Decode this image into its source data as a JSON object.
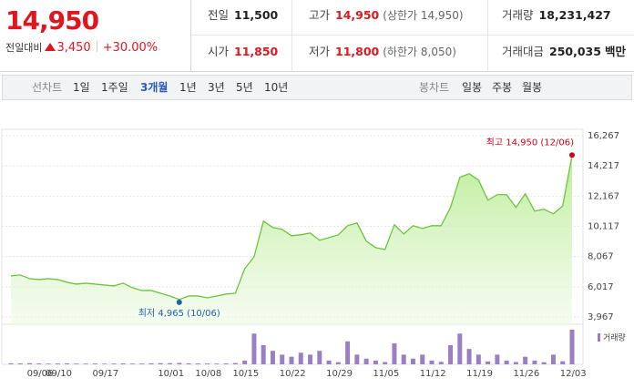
{
  "header": {
    "price": "14,950",
    "change_label": "전일대비",
    "change": "3,450",
    "change_rate": "+30.00%",
    "stats": [
      {
        "label": "전일",
        "value": "11,500"
      },
      {
        "label": "고가",
        "value": "14,950",
        "note": "(상한가 14,950)"
      },
      {
        "label": "거래량",
        "value": "18,231,427"
      },
      {
        "label": "시가",
        "value": "11,850"
      },
      {
        "label": "저가",
        "value": "11,800",
        "note": "(하한가 8,050)"
      },
      {
        "label": "거래대금",
        "value": "250,035",
        "unit": "백만"
      }
    ]
  },
  "toolbar": {
    "line_label": "선차트",
    "periods": [
      "1일",
      "1주일",
      "3개월",
      "1년",
      "3년",
      "5년",
      "10년"
    ],
    "selected_period": 2,
    "candle_label": "봉차트",
    "candle_periods": [
      "일봉",
      "주봉",
      "월봉"
    ]
  },
  "chart_data": {
    "type": "line",
    "categories": [
      "09/06",
      null,
      "09/10",
      null,
      null,
      null,
      null,
      "09/17",
      null,
      null,
      null,
      null,
      null,
      null,
      "10/01",
      null,
      null,
      null,
      "10/08",
      null,
      null,
      null,
      "10/15",
      null,
      null,
      null,
      null,
      "10/22",
      null,
      null,
      null,
      null,
      "10/29",
      null,
      null,
      null,
      null,
      "11/05",
      null,
      null,
      null,
      null,
      "11/12",
      null,
      null,
      null,
      null,
      "11/19",
      null,
      null,
      null,
      null,
      "11/26",
      null,
      null,
      null,
      null,
      "12/03",
      null,
      null,
      null
    ],
    "series": [
      {
        "color": "#6cc43c",
        "values": [
          6754,
          6816,
          6568,
          6506,
          6568,
          6506,
          6320,
          6196,
          6258,
          6196,
          6135,
          6073,
          6258,
          5949,
          5763,
          5763,
          5577,
          5391,
          5150,
          5391,
          5391,
          5267,
          5391,
          5515,
          5577,
          7249,
          8054,
          10470,
          10036,
          9912,
          9479,
          9541,
          9665,
          9169,
          9355,
          9541,
          10160,
          10346,
          9107,
          8674,
          8550,
          10222,
          9603,
          10160,
          9974,
          10160,
          10160,
          11399,
          13442,
          13690,
          13257,
          11894,
          12266,
          12266,
          11399,
          12328,
          11151,
          11275,
          10965,
          11500,
          14950
        ]
      }
    ],
    "volume": {
      "name": "거래량",
      "color": "#9a80c2",
      "values": [
        520000,
        480000,
        610000,
        450000,
        390000,
        420000,
        510000,
        380000,
        360000,
        430000,
        350000,
        400000,
        470000,
        390000,
        420000,
        530000,
        610000,
        580000,
        720000,
        490000,
        450000,
        410000,
        380000,
        460000,
        690000,
        2000000,
        16200000,
        10100000,
        7100000,
        5100000,
        4000000,
        6100000,
        5100000,
        7100000,
        2000000,
        1100000,
        12100000,
        5100000,
        3000000,
        2000000,
        1200000,
        11100000,
        5100000,
        3000000,
        5100000,
        2000000,
        1300000,
        10100000,
        16200000,
        8100000,
        5100000,
        1500000,
        5100000,
        2000000,
        1200000,
        4000000,
        2000000,
        1100000,
        5100000,
        1600000,
        18231427
      ]
    },
    "ylim": [
      3967,
      16267
    ],
    "yticks": [
      {
        "value": 3967,
        "label": "3,967"
      },
      {
        "value": 6017,
        "label": "6,017"
      },
      {
        "value": 8067,
        "label": "8,067"
      },
      {
        "value": 10117,
        "label": "10,117"
      },
      {
        "value": 12167,
        "label": "12,167"
      },
      {
        "value": 14217,
        "label": "14,217"
      },
      {
        "value": 16267,
        "label": "16,267"
      }
    ],
    "grid": true,
    "annotations": [
      {
        "text": "최고 14,950 (12/06)",
        "value": 14950,
        "color": "#d0021b"
      },
      {
        "text": "최저 4,965 (10/06)",
        "value": 4965,
        "color": "#1f5fae"
      }
    ]
  }
}
